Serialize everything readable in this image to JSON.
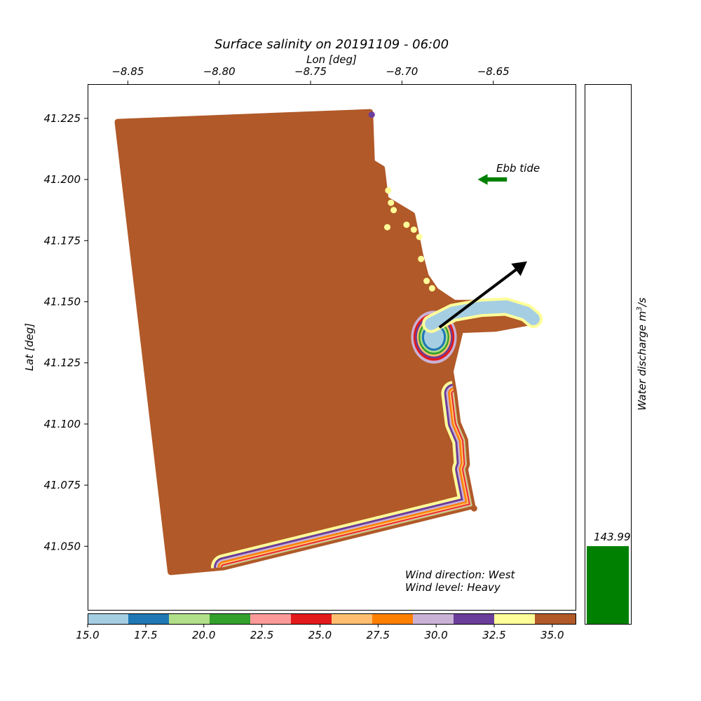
{
  "chart_data": {
    "type": "scatter",
    "title": "Surface salinity on 20191109 - 06:00",
    "xlabel": "Lon [deg]",
    "ylabel": "Lat [deg]",
    "xlim": [
      -8.872,
      -8.605
    ],
    "ylim": [
      41.024,
      41.239
    ],
    "xticks": [
      -8.85,
      -8.8,
      -8.75,
      -8.7,
      -8.65
    ],
    "xtick_labels": [
      "−8.85",
      "−8.80",
      "−8.75",
      "−8.70",
      "−8.65"
    ],
    "yticks": [
      41.05,
      41.075,
      41.1,
      41.125,
      41.15,
      41.175,
      41.2,
      41.225
    ],
    "ytick_labels": [
      "41.050",
      "41.075",
      "41.100",
      "41.125",
      "41.150",
      "41.175",
      "41.200",
      "41.225"
    ],
    "x_axis_position": "top",
    "grid": false,
    "colorbar": {
      "orientation": "horizontal",
      "range": [
        15.0,
        36.0
      ],
      "ticks": [
        15.0,
        17.5,
        20.0,
        22.5,
        25.0,
        27.5,
        30.0,
        32.5,
        35.0
      ],
      "tick_labels": [
        "15.0",
        "17.5",
        "20.0",
        "22.5",
        "25.0",
        "27.5",
        "30.0",
        "32.5",
        "35.0"
      ],
      "colors": [
        "#a6cee3",
        "#1f78b4",
        "#b2df8a",
        "#33a02c",
        "#fb9a99",
        "#e31a1c",
        "#fdbf6f",
        "#ff7f00",
        "#cab2d6",
        "#6a3d9a",
        "#ffff99",
        "#b15928"
      ]
    },
    "domain_polygon": [
      [
        -8.8555,
        41.2235
      ],
      [
        -8.7175,
        41.2275
      ],
      [
        -8.7165,
        41.207
      ],
      [
        -8.711,
        41.2045
      ],
      [
        -8.709,
        41.192
      ],
      [
        -8.6945,
        41.1855
      ],
      [
        -8.692,
        41.1765
      ],
      [
        -8.69,
        41.169
      ],
      [
        -8.687,
        41.1605
      ],
      [
        -8.6815,
        41.1545
      ],
      [
        -8.6715,
        41.1495
      ],
      [
        -8.642,
        41.1495
      ],
      [
        -8.627,
        41.1445
      ],
      [
        -8.6275,
        41.142
      ],
      [
        -8.649,
        41.139
      ],
      [
        -8.668,
        41.1385
      ],
      [
        -8.6735,
        41.1215
      ],
      [
        -8.6715,
        41.1125
      ],
      [
        -8.6695,
        41.1005
      ],
      [
        -8.6655,
        41.0935
      ],
      [
        -8.6645,
        41.0835
      ],
      [
        -8.6655,
        41.0815
      ],
      [
        -8.6615,
        41.0665
      ],
      [
        -8.7975,
        41.0415
      ],
      [
        -8.8265,
        41.0395
      ]
    ],
    "plume_bands": [
      {
        "salinity": 34.0,
        "offset": 0.007
      },
      {
        "salinity": 32.0,
        "offset": 0.0054
      },
      {
        "salinity": 30.0,
        "offset": 0.0043
      },
      {
        "salinity": 28.5,
        "offset": 0.0033
      },
      {
        "salinity": 26.5,
        "offset": 0.0024
      },
      {
        "salinity": 24.5,
        "offset": 0.0016
      },
      {
        "salinity": 23.0,
        "offset": 0.001
      },
      {
        "salinity": 20.0,
        "offset": 0.0005
      }
    ],
    "eddy": {
      "center": [
        -8.6825,
        41.1355
      ],
      "rings": [
        {
          "salinity": 30.0,
          "rx": 0.0125,
          "ry": 0.0108
        },
        {
          "salinity": 24.5,
          "rx": 0.0112,
          "ry": 0.0096
        },
        {
          "salinity": 32.0,
          "rx": 0.0102,
          "ry": 0.0087
        },
        {
          "salinity": 26.5,
          "rx": 0.0093,
          "ry": 0.0079
        },
        {
          "salinity": 21.5,
          "rx": 0.0084,
          "ry": 0.0071
        },
        {
          "salinity": 19.0,
          "rx": 0.0075,
          "ry": 0.0063
        },
        {
          "salinity": 17.0,
          "rx": 0.0066,
          "ry": 0.0056
        },
        {
          "salinity": 15.5,
          "rx": 0.0054,
          "ry": 0.0047
        }
      ]
    },
    "river_plume": {
      "salinity": 15.5,
      "fringe_salinity": 34.0,
      "path": [
        [
          -8.684,
          41.141
        ],
        [
          -8.672,
          41.1455
        ],
        [
          -8.657,
          41.1475
        ],
        [
          -8.643,
          41.148
        ],
        [
          -8.632,
          41.1455
        ],
        [
          -8.628,
          41.143
        ]
      ]
    },
    "coast_dots": [
      {
        "salinity": 32.0,
        "lon": -8.7165,
        "lat": 41.2265
      },
      {
        "salinity": 34.0,
        "lon": -8.7075,
        "lat": 41.1955
      },
      {
        "salinity": 34.0,
        "lon": -8.706,
        "lat": 41.1905
      },
      {
        "salinity": 34.0,
        "lon": -8.7045,
        "lat": 41.1875
      },
      {
        "salinity": 34.0,
        "lon": -8.708,
        "lat": 41.1805
      },
      {
        "salinity": 34.0,
        "lon": -8.6975,
        "lat": 41.1815
      },
      {
        "salinity": 34.0,
        "lon": -8.6935,
        "lat": 41.1795
      },
      {
        "salinity": 34.0,
        "lon": -8.6905,
        "lat": 41.1765
      },
      {
        "salinity": 34.0,
        "lon": -8.6895,
        "lat": 41.1675
      },
      {
        "salinity": 34.0,
        "lon": -8.6865,
        "lat": 41.1585
      },
      {
        "salinity": 34.0,
        "lon": -8.6835,
        "lat": 41.1555
      },
      {
        "salinity": 35.5,
        "lon": -8.6605,
        "lat": 41.0655
      }
    ],
    "current_arrow": {
      "from": [
        -8.6795,
        41.1395
      ],
      "to": [
        -8.6315,
        41.1665
      ]
    },
    "tide_label": "Ebb tide",
    "tide_arrow": {
      "from": [
        -8.6425,
        41.2
      ],
      "to": [
        -8.6585,
        41.2
      ]
    },
    "tide_arrow_color": "#008000",
    "annotation_lines": [
      "Wind direction: West",
      "Wind level: Heavy"
    ],
    "discharge": {
      "label": "Water discharge m",
      "label_sup": "3",
      "label_tail": "/s",
      "value": 143.99,
      "value_label": "143.99",
      "bar_color": "#008000"
    }
  }
}
